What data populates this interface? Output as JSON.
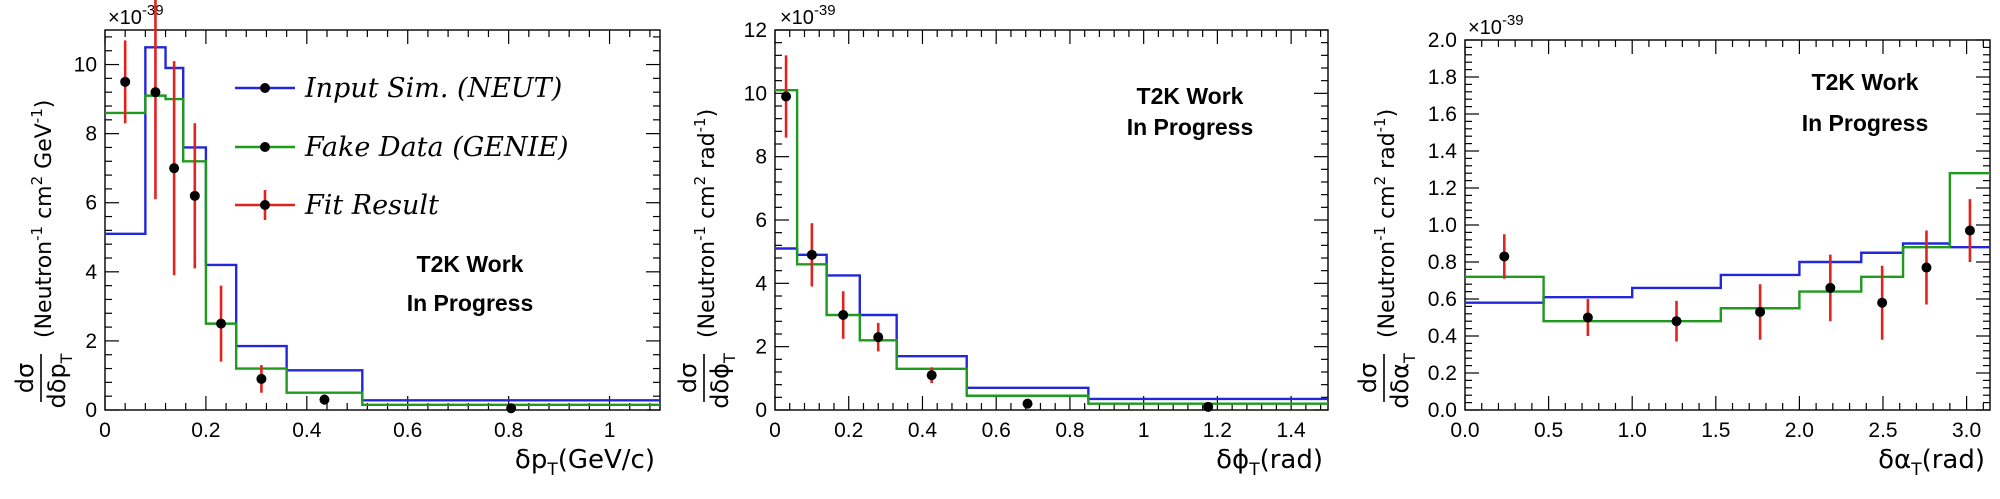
{
  "colors": {
    "neut": "#2228d9",
    "genie": "#1f9a1f",
    "fit": "#e0231e",
    "point": "#000000"
  },
  "chart_data": [
    {
      "type": "line",
      "id": "dpt",
      "exponent_label": "×10",
      "exponent_power": "-39",
      "xlabel_main": "δp",
      "xlabel_sub": "T",
      "xlabel_unit": "(GeV/c)",
      "ylabel_num": "dσ",
      "ylabel_den_main": "dδp",
      "ylabel_den_sub": "T",
      "ylabel_units": [
        "(Neutron",
        "-1",
        " cm",
        "2",
        " GeV",
        "-1",
        ")"
      ],
      "annotation": [
        "T2K Work",
        "In Progress"
      ],
      "xlim": [
        0,
        1.1
      ],
      "ylim": [
        0,
        11
      ],
      "xticks": [
        0,
        0.2,
        0.4,
        0.6,
        0.8,
        1.0
      ],
      "xtick_labels": [
        "0",
        "0.2",
        "0.4",
        "0.6",
        "0.8",
        "1"
      ],
      "yticks": [
        0,
        2,
        4,
        6,
        8,
        10
      ],
      "ytick_labels": [
        "0",
        "2",
        "4",
        "6",
        "8",
        "10"
      ],
      "legend": [
        "Input Sim. (NEUT)",
        "Fake Data (GENIE)",
        "Fit Result"
      ],
      "bin_edges": [
        0,
        0.08,
        0.12,
        0.155,
        0.2,
        0.26,
        0.36,
        0.51,
        1.1
      ],
      "series": [
        {
          "name": "Input Sim. (NEUT)",
          "values": [
            5.1,
            10.5,
            9.9,
            7.6,
            4.2,
            1.85,
            1.15,
            0.28
          ]
        },
        {
          "name": "Fake Data (GENIE)",
          "values": [
            8.6,
            9.1,
            9.0,
            7.2,
            2.5,
            1.2,
            0.5,
            0.15
          ]
        },
        {
          "name": "Fit Result",
          "x": [
            0.04,
            0.1,
            0.137,
            0.178,
            0.23,
            0.31,
            0.435,
            0.805
          ],
          "y": [
            9.5,
            9.2,
            7.0,
            6.2,
            2.5,
            0.9,
            0.3,
            0.05
          ],
          "yerr": [
            1.2,
            3.1,
            3.1,
            2.1,
            1.1,
            0.4,
            0.15,
            0.08
          ]
        }
      ]
    },
    {
      "type": "line",
      "id": "dphit",
      "exponent_label": "×10",
      "exponent_power": "-39",
      "xlabel_main": "δϕ",
      "xlabel_sub": "T",
      "xlabel_unit": "(rad)",
      "ylabel_num": "dσ",
      "ylabel_den_main": "dδϕ",
      "ylabel_den_sub": "T",
      "ylabel_units": [
        "(Neutron",
        "-1",
        " cm",
        "2",
        " rad",
        "-1",
        ")"
      ],
      "annotation": [
        "T2K Work",
        "In Progress"
      ],
      "xlim": [
        0,
        1.5
      ],
      "ylim": [
        0,
        12
      ],
      "xticks": [
        0,
        0.2,
        0.4,
        0.6,
        0.8,
        1.0,
        1.2,
        1.4
      ],
      "xtick_labels": [
        "0",
        "0.2",
        "0.4",
        "0.6",
        "0.8",
        "1",
        "1.2",
        "1.4"
      ],
      "yticks": [
        0,
        2,
        4,
        6,
        8,
        10,
        12
      ],
      "ytick_labels": [
        "0",
        "2",
        "4",
        "6",
        "8",
        "10",
        "12"
      ],
      "bin_edges": [
        0,
        0.06,
        0.14,
        0.23,
        0.33,
        0.52,
        0.85,
        1.5
      ],
      "series": [
        {
          "name": "Input Sim. (NEUT)",
          "values": [
            5.1,
            4.9,
            4.25,
            3.0,
            1.7,
            0.7,
            0.35
          ]
        },
        {
          "name": "Fake Data (GENIE)",
          "values": [
            10.1,
            4.6,
            3.0,
            2.2,
            1.3,
            0.45,
            0.2
          ]
        },
        {
          "name": "Fit Result",
          "x": [
            0.03,
            0.1,
            0.185,
            0.28,
            0.425,
            0.685,
            1.175
          ],
          "y": [
            9.9,
            4.9,
            3.0,
            2.3,
            1.1,
            0.2,
            0.1
          ],
          "yerr": [
            1.3,
            1.0,
            0.75,
            0.45,
            0.25,
            0.05,
            0.05
          ]
        }
      ]
    },
    {
      "type": "line",
      "id": "dalphat",
      "exponent_label": "×10",
      "exponent_power": "-39",
      "xlabel_main": "δα",
      "xlabel_sub": "T",
      "xlabel_unit": "(rad)",
      "ylabel_num": "dσ",
      "ylabel_den_main": "dδα",
      "ylabel_den_sub": "T",
      "ylabel_units": [
        "(Neutron",
        "-1",
        " cm",
        "2",
        " rad",
        "-1",
        ")"
      ],
      "annotation": [
        "T2K Work",
        "In Progress"
      ],
      "xlim": [
        0,
        3.14
      ],
      "ylim": [
        0,
        2.0
      ],
      "xticks": [
        0,
        0.5,
        1.0,
        1.5,
        2.0,
        2.5,
        3.0
      ],
      "xtick_labels": [
        "0.0",
        "0.5",
        "1.0",
        "1.5",
        "2.0",
        "2.5",
        "3.0"
      ],
      "yticks": [
        0,
        0.2,
        0.4,
        0.6,
        0.8,
        1.0,
        1.2,
        1.4,
        1.6,
        1.8,
        2.0
      ],
      "ytick_labels": [
        "0.0",
        "0.2",
        "0.4",
        "0.6",
        "0.8",
        "1.0",
        "1.2",
        "1.4",
        "1.6",
        "1.8",
        "2.0"
      ],
      "bin_edges": [
        0,
        0.47,
        1.0,
        1.53,
        2.0,
        2.37,
        2.62,
        2.9,
        3.14
      ],
      "series": [
        {
          "name": "Input Sim. (NEUT)",
          "values": [
            0.58,
            0.61,
            0.66,
            0.73,
            0.8,
            0.85,
            0.9,
            0.88
          ]
        },
        {
          "name": "Fake Data (GENIE)",
          "values": [
            0.72,
            0.48,
            0.48,
            0.55,
            0.64,
            0.72,
            0.88,
            1.28
          ]
        },
        {
          "name": "Fit Result",
          "x": [
            0.235,
            0.735,
            1.265,
            1.765,
            2.185,
            2.495,
            2.76,
            3.02
          ],
          "y": [
            0.83,
            0.5,
            0.48,
            0.53,
            0.66,
            0.58,
            0.77,
            0.97
          ],
          "yerr": [
            0.12,
            0.1,
            0.11,
            0.15,
            0.18,
            0.2,
            0.2,
            0.17
          ]
        }
      ]
    }
  ]
}
